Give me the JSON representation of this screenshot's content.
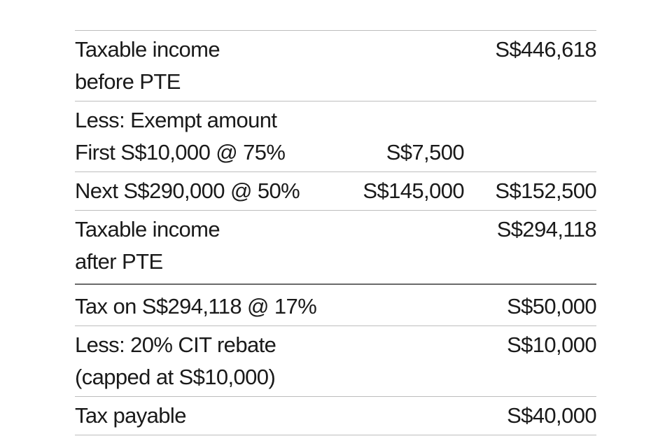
{
  "table": {
    "rows": [
      {
        "lines": [
          {
            "label": "Taxable income",
            "right": "S$446,618"
          },
          {
            "label": "before PTE"
          }
        ]
      },
      {
        "lines": [
          {
            "label": "Less: Exempt amount"
          },
          {
            "label": "First S$10,000 @ 75%",
            "mid": "S$7,500"
          }
        ]
      },
      {
        "lines": [
          {
            "label": "Next S$290,000 @ 50%",
            "mid": "S$145,000",
            "right": "S$152,500"
          }
        ]
      },
      {
        "lines": [
          {
            "label": "Taxable income",
            "right": "S$294,118"
          },
          {
            "label": "after PTE"
          }
        ]
      },
      {
        "lines": [
          {
            "label": "Tax on S$294,118 @ 17%",
            "right": "S$50,000"
          }
        ]
      },
      {
        "lines": [
          {
            "label": "Less: 20% CIT rebate",
            "right": "S$10,000"
          },
          {
            "label": "(capped at S$10,000)"
          }
        ]
      },
      {
        "lines": [
          {
            "label": "Tax payable",
            "right": "S$40,000"
          }
        ]
      }
    ]
  }
}
